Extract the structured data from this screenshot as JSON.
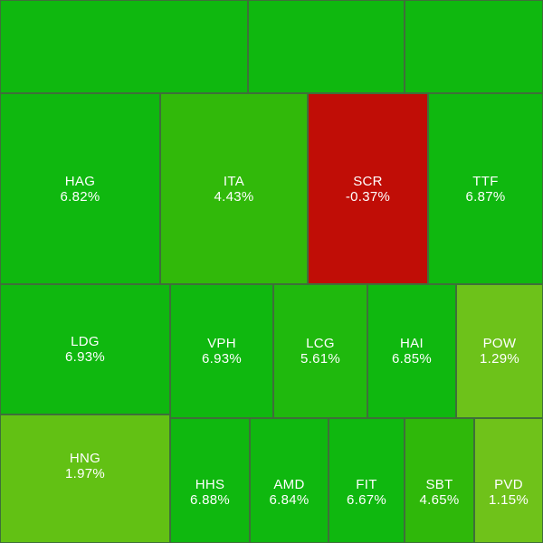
{
  "treemap": {
    "tiles": [
      {
        "id": "top-1",
        "symbol": "",
        "change": "",
        "color": "#0fb80f"
      },
      {
        "id": "top-2",
        "symbol": "",
        "change": "",
        "color": "#0fb80f"
      },
      {
        "id": "top-3",
        "symbol": "",
        "change": "",
        "color": "#0fb80f"
      },
      {
        "id": "hag",
        "symbol": "HAG",
        "change": "6.82%",
        "color": "#0fb80f"
      },
      {
        "id": "ita",
        "symbol": "ITA",
        "change": "4.43%",
        "color": "#31b90a"
      },
      {
        "id": "scr",
        "symbol": "SCR",
        "change": "-0.37%",
        "color": "#c00d06"
      },
      {
        "id": "ttf",
        "symbol": "TTF",
        "change": "6.87%",
        "color": "#0fb80f"
      },
      {
        "id": "ldg",
        "symbol": "LDG",
        "change": "6.93%",
        "color": "#0fb80f"
      },
      {
        "id": "vph",
        "symbol": "VPH",
        "change": "6.93%",
        "color": "#0fb80f"
      },
      {
        "id": "lcg",
        "symbol": "LCG",
        "change": "5.61%",
        "color": "#1fb90d"
      },
      {
        "id": "hai",
        "symbol": "HAI",
        "change": "6.85%",
        "color": "#0fb80f"
      },
      {
        "id": "pow",
        "symbol": "POW",
        "change": "1.29%",
        "color": "#6dc21a"
      },
      {
        "id": "hng",
        "symbol": "HNG",
        "change": "1.97%",
        "color": "#62c114"
      },
      {
        "id": "hhs",
        "symbol": "HHS",
        "change": "6.88%",
        "color": "#0fb80f"
      },
      {
        "id": "amd",
        "symbol": "AMD",
        "change": "6.84%",
        "color": "#0fb80f"
      },
      {
        "id": "fit",
        "symbol": "FIT",
        "change": "6.67%",
        "color": "#0fb80f"
      },
      {
        "id": "sbt",
        "symbol": "SBT",
        "change": "4.65%",
        "color": "#2fb80a"
      },
      {
        "id": "pvd",
        "symbol": "PVD",
        "change": "1.15%",
        "color": "#6fc21a"
      }
    ]
  }
}
